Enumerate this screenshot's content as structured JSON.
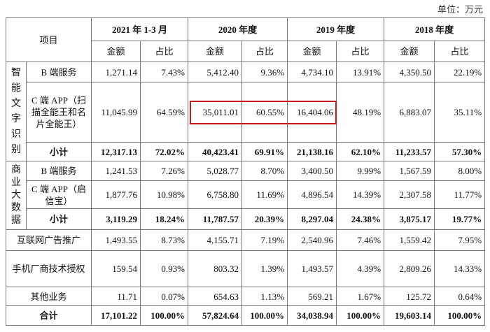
{
  "unit": "单位：万元",
  "table": {
    "header": {
      "item": "项目",
      "periods": [
        "2021 年 1-3 月",
        "2020 年度",
        "2019 年度",
        "2018 年度"
      ],
      "subheaders": [
        "金额",
        "占比",
        "金额",
        "占比",
        "金额",
        "占比",
        "金额",
        "占比"
      ]
    },
    "sections": [
      {
        "group": "智能文字识别",
        "rows": [
          {
            "label": "B 端服务",
            "cells": [
              "1,271.14",
              "7.43%",
              "5,412.40",
              "9.36%",
              "4,734.10",
              "13.91%",
              "4,350.50",
              "22.19%"
            ]
          },
          {
            "label": "C 端 APP（扫描全能王和名片全能王）",
            "cells": [
              "11,045.99",
              "64.59%",
              "35,011.01",
              "60.55%",
              "16,404.06",
              "48.19%",
              "6,883.07",
              "35.11%"
            ]
          },
          {
            "label": "小计",
            "cells": [
              "12,317.13",
              "72.02%",
              "40,423.41",
              "69.91%",
              "21,138.16",
              "62.10%",
              "11,233.57",
              "57.30%"
            ]
          }
        ]
      },
      {
        "group": "商业大数据",
        "rows": [
          {
            "label": "B 端服务",
            "cells": [
              "1,241.53",
              "7.26%",
              "5,028.77",
              "8.70%",
              "3,400.50",
              "9.99%",
              "1,567.59",
              "8.00%"
            ]
          },
          {
            "label": "C 端 APP（启信宝）",
            "cells": [
              "1,877.76",
              "10.98%",
              "6,758.80",
              "11.69%",
              "4,896.54",
              "14.39%",
              "2,307.58",
              "11.77%"
            ]
          },
          {
            "label": "小计",
            "cells": [
              "3,119.29",
              "18.24%",
              "11,787.57",
              "20.39%",
              "8,297.04",
              "24.38%",
              "3,875.17",
              "19.77%"
            ]
          }
        ]
      },
      {
        "rows": [
          {
            "label": "互联网广告推广",
            "cells": [
              "1,493.55",
              "8.73%",
              "4,155.71",
              "7.19%",
              "2,540.96",
              "7.46%",
              "1,559.42",
              "7.95%"
            ]
          }
        ]
      },
      {
        "rows": [
          {
            "label": "手机厂商技术授权",
            "cells": [
              "159.54",
              "0.93%",
              "803.32",
              "1.39%",
              "1,493.57",
              "4.39%",
              "2,809.26",
              "14.33%"
            ]
          }
        ]
      },
      {
        "rows": [
          {
            "label": "其他业务",
            "cells": [
              "11.71",
              "0.07%",
              "654.63",
              "1.13%",
              "569.21",
              "1.67%",
              "125.72",
              "0.64%"
            ]
          }
        ]
      },
      {
        "rows": [
          {
            "label": "合计",
            "cells": [
              "17,101.22",
              "100.00%",
              "57,824.64",
              "100.00%",
              "34,038.94",
              "100.00%",
              "19,603.14",
              "100.00%"
            ]
          }
        ]
      }
    ]
  }
}
